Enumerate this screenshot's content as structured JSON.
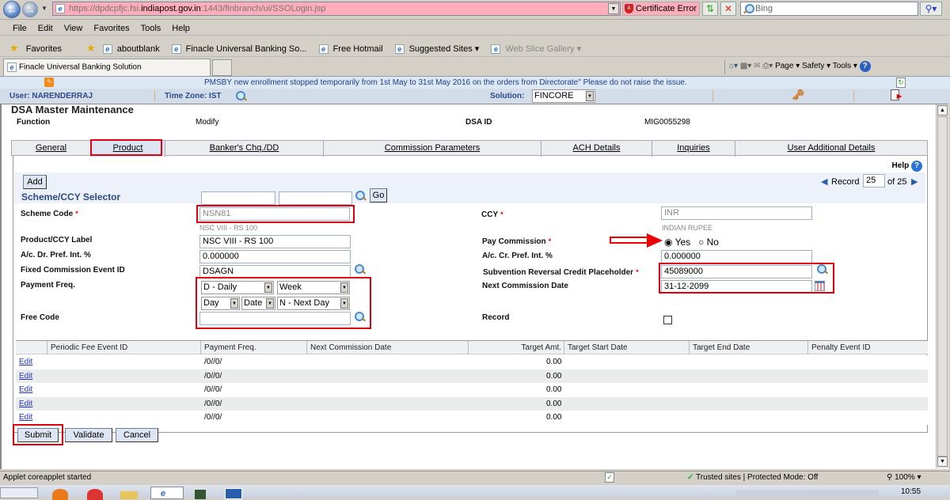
{
  "browser": {
    "url_prefix": "https://dpdcpfjc.fsi.",
    "url_domain": "indiapost.gov.in",
    "url_suffix": ":1443/finbranch/ui/SSOLogin.jsp",
    "cert_error": "Certificate Error",
    "search_placeholder": "Bing",
    "menu": [
      "File",
      "Edit",
      "View",
      "Favorites",
      "Tools",
      "Help"
    ],
    "favorites_label": "Favorites",
    "favorites": [
      "aboutblank",
      "Finacle Universal Banking So...",
      "Free Hotmail",
      "Suggested Sites ▾",
      "Web Slice Gallery ▾"
    ],
    "tab_title": "Finacle Universal Banking Solution",
    "command_bar": [
      "Page ▾",
      "Safety ▾",
      "Tools ▾"
    ]
  },
  "app": {
    "announcement": "PMSBY new enrollment stopped temporarily from 1st May to 31st May 2016 on the orders from Directorate\" Please do not raise the issue.",
    "user": "User: NARENDERRAJ",
    "timezone": "Time Zone:  IST",
    "solution_label": "Solution:",
    "solution_value": "FINCORE",
    "page_title": "DSA Master Maintenance",
    "function_label": "Function",
    "function_value": "Modify",
    "dsa_id_label": "DSA ID",
    "dsa_id_value": "MIG0055298"
  },
  "tabs": [
    "General",
    "Product",
    "Banker's Chq./DD",
    "Commission Parameters",
    "ACH Details",
    "Inquiries",
    "User Additional Details"
  ],
  "active_tab": "Product",
  "panel": {
    "help": "Help",
    "add": "Add",
    "record_label": "Record",
    "record_value": "25",
    "record_of": "of 25",
    "selector_title": "Scheme/CCY Selector",
    "go": "Go",
    "scheme_code_label": "Scheme Code",
    "scheme_code_value": "NSN81",
    "scheme_code_desc": "NSC VIII - RS 100",
    "ccy_label": "CCY",
    "ccy_value": "INR",
    "ccy_desc": "INDIAN RUPEE",
    "product_label": "Product/CCY Label",
    "product_value": "NSC VIII - RS 100",
    "pay_commission_label": "Pay Commission",
    "yes": "Yes",
    "no": "No",
    "dr_pref_label": "A/c. Dr. Pref. Int. %",
    "dr_pref_value": "0.000000",
    "cr_pref_label": "A/c. Cr. Pref. Int. %",
    "cr_pref_value": "0.000000",
    "fixed_event_label": "Fixed Commission Event ID",
    "fixed_event_value": "DSAGN",
    "subvention_label": "Subvention Reversal Credit Placeholder",
    "subvention_value": "45089000",
    "payment_freq_label": "Payment Freq.",
    "freq1": "D - Daily",
    "freq2": "Week",
    "freq3": "Day",
    "freq4": "Date",
    "freq5": "N - Next Day",
    "next_comm_label": "Next Commission Date",
    "next_comm_value": "31-12-2099",
    "free_code_label": "Free Code",
    "record_chk_label": "Record"
  },
  "table": {
    "headers": [
      "",
      "Periodic Fee Event ID",
      "Payment Freq.",
      "Next Commission Date",
      "Target Amt.",
      "Target Start Date",
      "Target End Date",
      "Penalty Event ID"
    ],
    "rows": [
      {
        "link": "Edit",
        "freq": "/0//0/",
        "amt": "0.00"
      },
      {
        "link": "Edit",
        "freq": "/0//0/",
        "amt": "0.00"
      },
      {
        "link": "Edit",
        "freq": "/0//0/",
        "amt": "0.00"
      },
      {
        "link": "Edit",
        "freq": "/0//0/",
        "amt": "0.00"
      },
      {
        "link": "Edit",
        "freq": "/0//0/",
        "amt": "0.00"
      }
    ]
  },
  "buttons": {
    "submit": "Submit",
    "validate": "Validate",
    "cancel": "Cancel"
  },
  "statusbar": {
    "message": "Applet coreapplet started",
    "zone": "Trusted sites | Protected Mode: Off",
    "zoom": "100%"
  },
  "taskbar": {
    "clock": "10:55"
  },
  "colors": {
    "highlight": "#e00010",
    "announcement_bg": "#dde8f5",
    "link": "#2233cc"
  }
}
